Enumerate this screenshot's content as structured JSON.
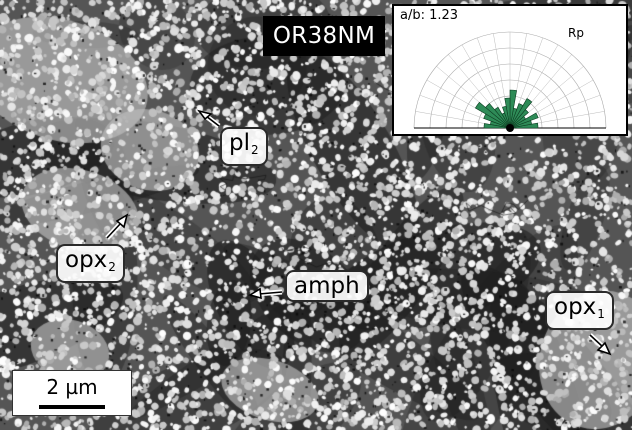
{
  "sample_id": "OR38NM",
  "labels": {
    "pl": {
      "base": "pl",
      "sub": "2"
    },
    "opx_left": {
      "base": "opx",
      "sub": "2"
    },
    "amph": {
      "base": "amph"
    },
    "opx_right": {
      "base": "opx",
      "sub": "1"
    }
  },
  "scale_bar": {
    "text": "2 µm"
  },
  "inset": {
    "ratio_label": "a/b: 1.23",
    "rose_label": "Rp",
    "petal_color": "#2e8b57"
  },
  "colors": {
    "dark_matrix": "#3a3a3a",
    "grain_light": "#e8e8e8"
  }
}
